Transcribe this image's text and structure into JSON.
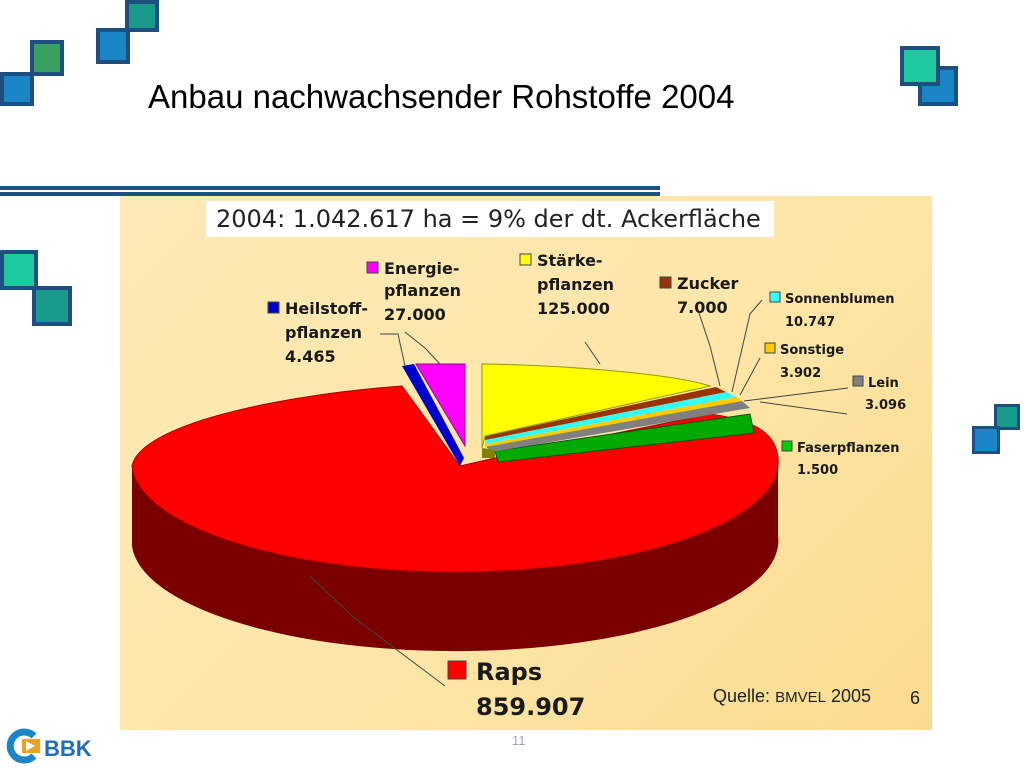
{
  "slide": {
    "title": "Anbau nachwachsender Rohstoffe 2004",
    "page_number": "11",
    "logo_text": "BBK"
  },
  "chart_data": {
    "type": "pie",
    "title": "2004: 1.042.617 ha = 9% der dt. Ackerfläche",
    "source_prefix": "Quelle:",
    "source_org": "BMVEL",
    "source_year": "2005",
    "panel_page": "6",
    "slices": [
      {
        "name": "Raps",
        "value_label": "859.907",
        "value": 859907,
        "color": "#ff0000",
        "side_color": "#7a0000"
      },
      {
        "name": "Heilstoff-\npflanzen",
        "value_label": "4.465",
        "value": 4465,
        "color": "#0000cc",
        "side_color": "#000066"
      },
      {
        "name": "Energie-\npflanzen",
        "value_label": "27.000",
        "value": 27000,
        "color": "#ff00ff",
        "side_color": "#800080"
      },
      {
        "name": "Stärke-\npflanzen",
        "value_label": "125.000",
        "value": 125000,
        "color": "#ffff00",
        "side_color": "#808000"
      },
      {
        "name": "Zucker",
        "value_label": "7.000",
        "value": 7000,
        "color": "#993300",
        "side_color": "#4d1a00"
      },
      {
        "name": "Sonnenblumen",
        "value_label": "10.747",
        "value": 10747,
        "color": "#33ffff",
        "side_color": "#1a8080"
      },
      {
        "name": "Sonstige",
        "value_label": "3.902",
        "value": 3902,
        "color": "#ffcc00",
        "side_color": "#806600"
      },
      {
        "name": "Lein",
        "value_label": "3.096",
        "value": 3096,
        "color": "#808080",
        "side_color": "#404040"
      },
      {
        "name": "Faserpflanzen",
        "value_label": "1.500",
        "value": 1500,
        "color": "#00aa00",
        "side_color": "#005500"
      }
    ]
  },
  "colors": {
    "deco_blue": "#1a86c8",
    "deco_teal": "#1a9a8a",
    "deco_green": "#3aa060",
    "deco_border": "#1f4f80"
  }
}
